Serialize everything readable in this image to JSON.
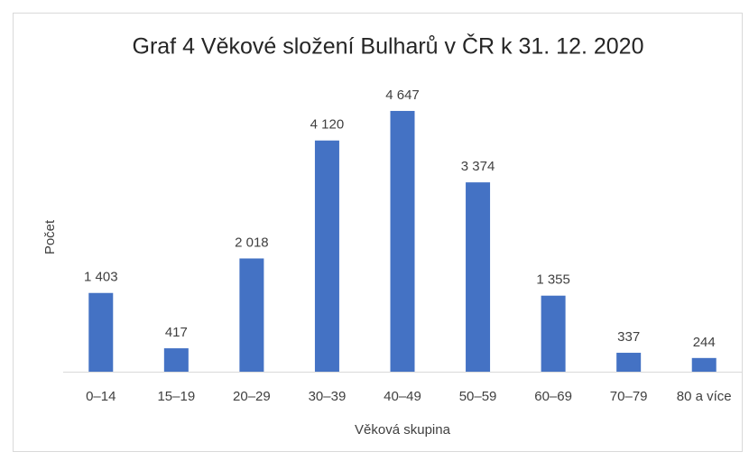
{
  "chart_data": {
    "type": "bar",
    "title": "Graf 4 Věkové složení Bulharů v ČR k 31. 12. 2020",
    "x_label": "Věková skupina",
    "y_label": "Počet",
    "categories": [
      "0–14",
      "15–19",
      "20–29",
      "30–39",
      "40–49",
      "50–59",
      "60–69",
      "70–79",
      "80 a více"
    ],
    "values": [
      1403,
      417,
      2018,
      4120,
      4647,
      3374,
      1355,
      337,
      244
    ],
    "value_labels": [
      "1 403",
      "417",
      "2 018",
      "4 120",
      "4 647",
      "3 374",
      "1 355",
      "337",
      "244"
    ],
    "color": "#4472c4",
    "ylim": [
      0,
      5000
    ]
  }
}
